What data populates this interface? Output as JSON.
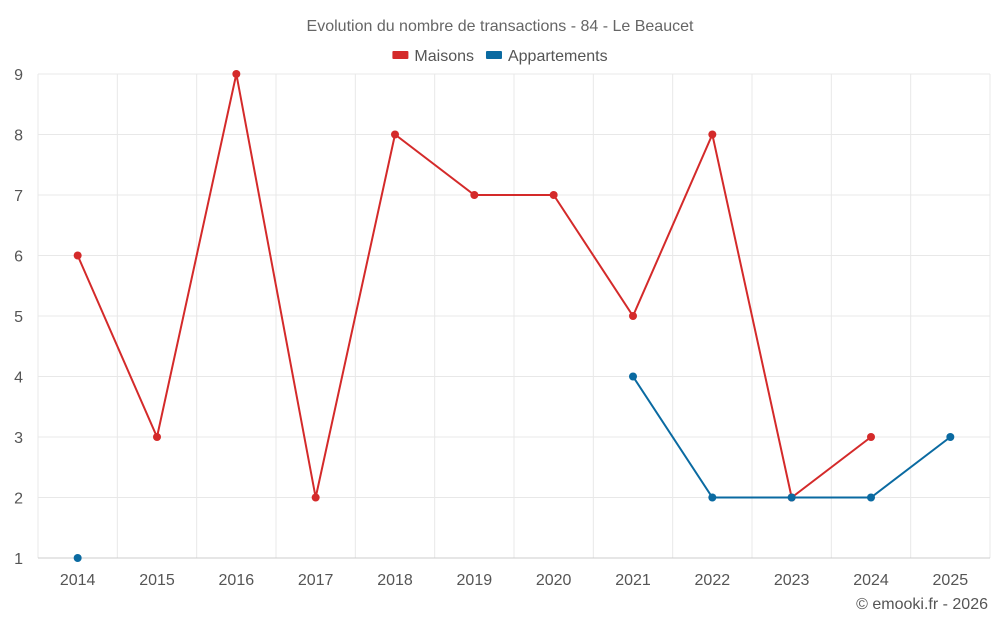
{
  "chart_data": {
    "type": "line",
    "title": "Evolution du nombre de transactions - 84 - Le Beaucet",
    "categories": [
      "2014",
      "2015",
      "2016",
      "2017",
      "2018",
      "2019",
      "2020",
      "2021",
      "2022",
      "2023",
      "2024",
      "2025"
    ],
    "ylim": [
      1,
      9
    ],
    "yticks": [
      "1",
      "2",
      "3",
      "4",
      "5",
      "6",
      "7",
      "8",
      "9"
    ],
    "grid": true,
    "legend_position": "top-center",
    "series": [
      {
        "name": "Maisons",
        "color": "#d42a2a",
        "values": [
          6,
          3,
          9,
          2,
          8,
          7,
          7,
          5,
          8,
          2,
          3,
          null
        ]
      },
      {
        "name": "Appartements",
        "color": "#0a6aa1",
        "values": [
          1,
          null,
          null,
          null,
          null,
          null,
          null,
          4,
          2,
          2,
          2,
          3
        ]
      }
    ],
    "credit": "© emooki.fr - 2026"
  }
}
